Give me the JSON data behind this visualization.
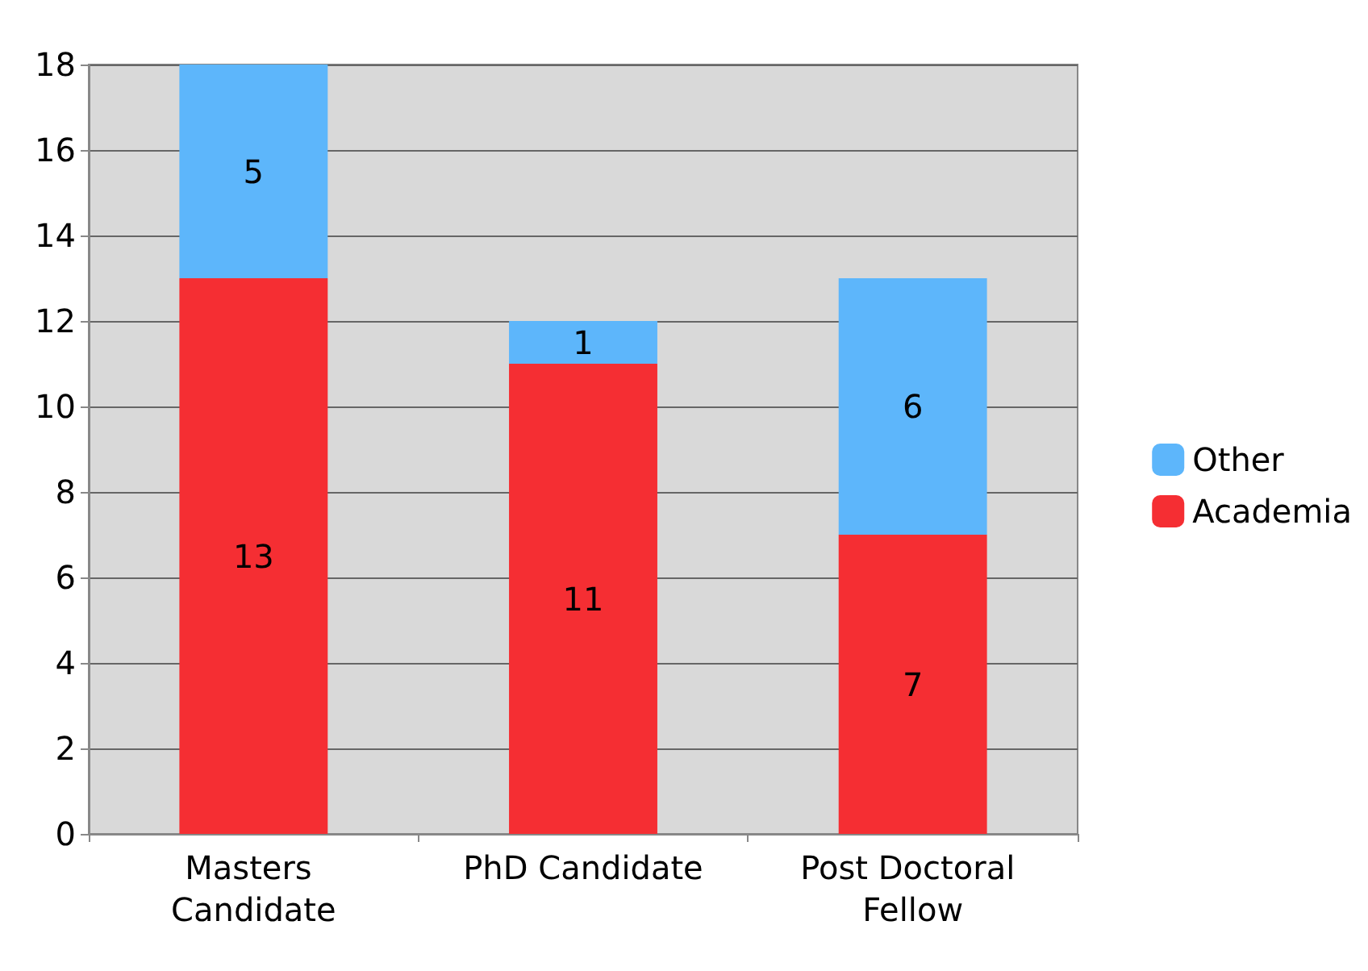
{
  "chart_data": {
    "type": "bar",
    "stacked": true,
    "categories": [
      "Masters Candidate",
      "PhD Candidate",
      "Post Doctoral Fellow"
    ],
    "series": [
      {
        "name": "Academia",
        "color": "#f52e33",
        "values": [
          13,
          11,
          7
        ]
      },
      {
        "name": "Other",
        "color": "#5db6fb",
        "values": [
          5,
          1,
          6
        ]
      }
    ],
    "ylim": [
      0,
      18
    ],
    "yticks": [
      0,
      2,
      4,
      6,
      8,
      10,
      12,
      14,
      16,
      18
    ],
    "grid": "y",
    "legend": "right",
    "data_labels": true
  }
}
